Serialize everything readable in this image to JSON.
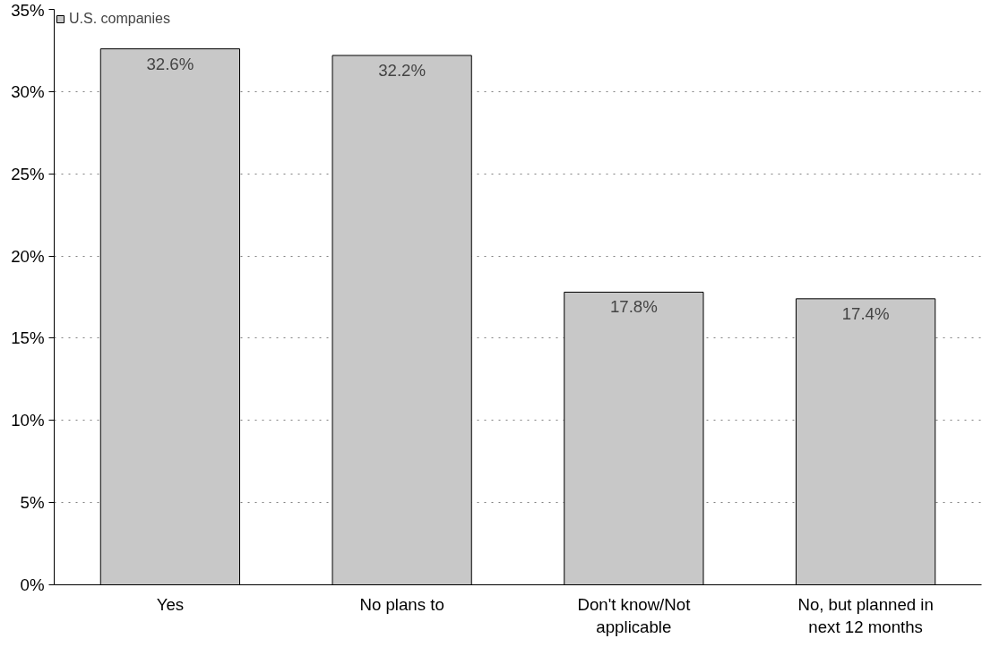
{
  "chart_data": {
    "type": "bar",
    "categories": [
      "Yes",
      "No plans to",
      "Don't know/Not applicable",
      "No, but planned in next 12 months"
    ],
    "series": [
      {
        "name": "U.S. companies",
        "color": "#c8c8c8",
        "values": [
          32.6,
          32.2,
          17.8,
          17.4
        ],
        "value_labels": [
          "32.6%",
          "32.2%",
          "17.8%",
          "17.4%"
        ]
      }
    ],
    "ylim": [
      0,
      35
    ],
    "yticks": [
      {
        "value": 0,
        "label": "0%"
      },
      {
        "value": 5,
        "label": "5%"
      },
      {
        "value": 10,
        "label": "10%"
      },
      {
        "value": 15,
        "label": "15%"
      },
      {
        "value": 20,
        "label": "20%"
      },
      {
        "value": 25,
        "label": "25%"
      },
      {
        "value": 30,
        "label": "30%"
      },
      {
        "value": 35,
        "label": "35%"
      }
    ],
    "grid": "y",
    "legend": "top left"
  }
}
